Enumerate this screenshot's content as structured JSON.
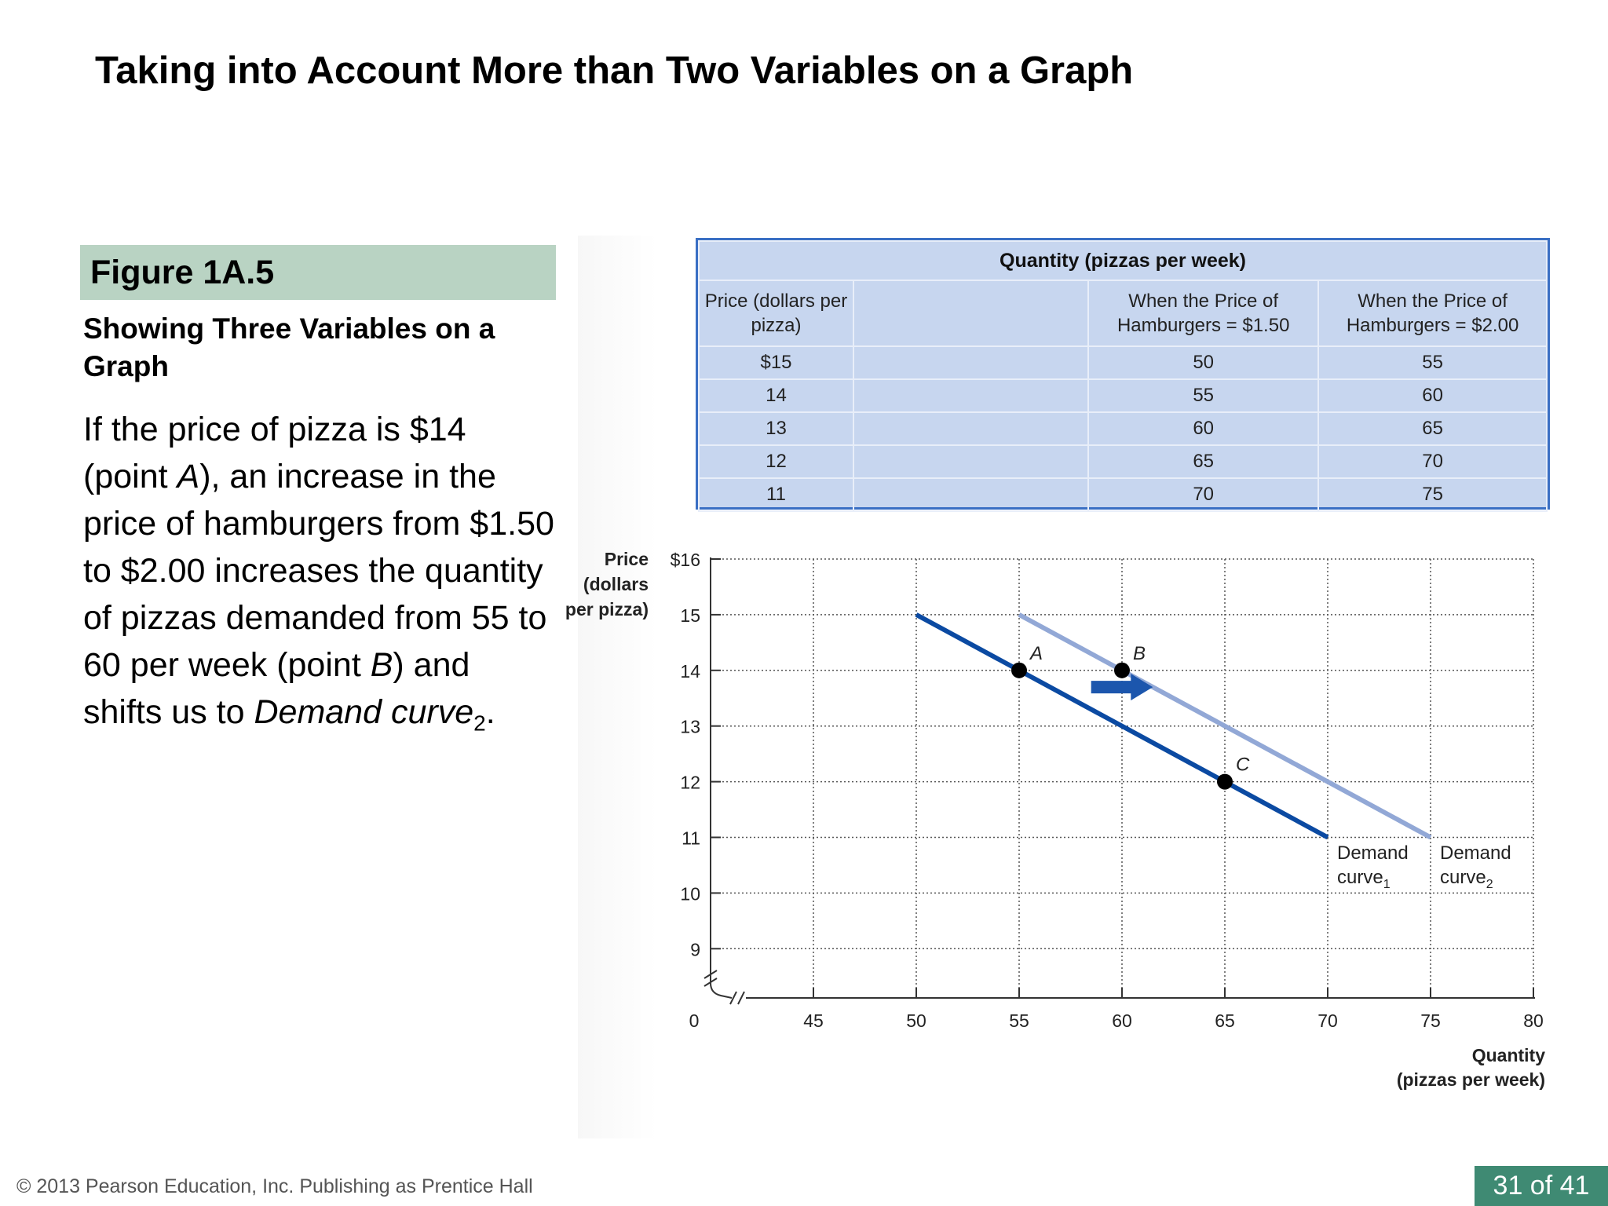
{
  "slide": {
    "title": "Taking into Account More than Two Variables on a Graph",
    "figure_label": "Figure 1A.5",
    "figure_subtitle": "Showing Three Variables on a Graph",
    "body": {
      "p1": "If the price of pizza is $14 (point ",
      "p1_italic": "A",
      "p2": "), an increase in the price of hamburgers from $1.50 to $2.00 increases the quantity of pizzas demanded from 55 to 60 per week (point ",
      "p2_italic": "B",
      "p3": ") and shifts us to ",
      "p3_italic": "Demand curve",
      "p3_sub": "2",
      "p4": "."
    }
  },
  "table": {
    "title": "Quantity (pizzas per week)",
    "col_price": "Price (dollars per pizza)",
    "col_q1": "When the Price of Hamburgers = $1.50",
    "col_q2": "When the Price of Hamburgers = $2.00",
    "rows": [
      {
        "price": "$15",
        "q1": "50",
        "q2": "55"
      },
      {
        "price": "14",
        "q1": "55",
        "q2": "60"
      },
      {
        "price": "13",
        "q1": "60",
        "q2": "65"
      },
      {
        "price": "12",
        "q1": "65",
        "q2": "70"
      },
      {
        "price": "11",
        "q1": "70",
        "q2": "75"
      }
    ]
  },
  "chart_data": {
    "type": "line",
    "xlabel": "Quantity (pizzas per week)",
    "ylabel": "Price (dollars per pizza)",
    "xlim": [
      40,
      80
    ],
    "ylim": [
      8,
      16
    ],
    "x_ticks": [
      "0",
      "45",
      "50",
      "55",
      "60",
      "65",
      "70",
      "75",
      "80"
    ],
    "y_ticks": [
      "9",
      "10",
      "11",
      "12",
      "13",
      "14",
      "15",
      "$16"
    ],
    "axis_breaks": true,
    "grid": true,
    "series": [
      {
        "name": "Demand curve1",
        "label_main": "Demand",
        "label_sub_prefix": "curve",
        "label_sub": "1",
        "color": "#0b4aa2",
        "points": [
          [
            50,
            15
          ],
          [
            70,
            11
          ]
        ]
      },
      {
        "name": "Demand curve2",
        "label_main": "Demand",
        "label_sub_prefix": "curve",
        "label_sub": "2",
        "color": "#92a8d6",
        "points": [
          [
            55,
            15
          ],
          [
            75,
            11
          ]
        ]
      }
    ],
    "points": [
      {
        "label": "A",
        "x": 55,
        "y": 14
      },
      {
        "label": "B",
        "x": 60,
        "y": 14
      },
      {
        "label": "C",
        "x": 65,
        "y": 12
      }
    ],
    "arrow": {
      "from": [
        58.5,
        13.7
      ],
      "to": [
        61.5,
        13.7
      ],
      "color": "#1c56ad"
    }
  },
  "footer": {
    "copyright": "© 2013 Pearson Education, Inc. Publishing as Prentice Hall",
    "page": "31 of 41"
  }
}
